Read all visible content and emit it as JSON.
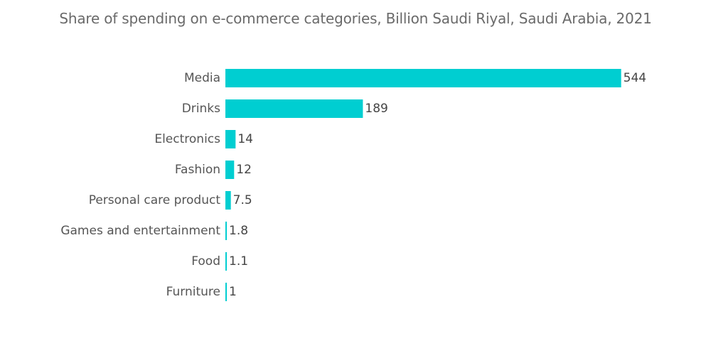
{
  "chart_data": {
    "type": "bar",
    "orientation": "horizontal",
    "title": "Share of spending on e-commerce categories, Billion Saudi Riyal, Saudi Arabia, 2021",
    "categories": [
      "Media",
      "Drinks",
      "Electronics",
      "Fashion",
      "Personal care product",
      "Games and entertainment",
      "Food",
      "Furniture"
    ],
    "values": [
      544,
      189,
      14,
      12,
      7.5,
      1.8,
      1.1,
      1
    ],
    "value_labels": [
      "544",
      "189",
      "14",
      "12",
      "7.5",
      "1.8",
      "1.1",
      "1"
    ],
    "xlim": [
      0,
      560
    ],
    "grid": false,
    "legend": "none",
    "bar_color": "#00CED1"
  }
}
